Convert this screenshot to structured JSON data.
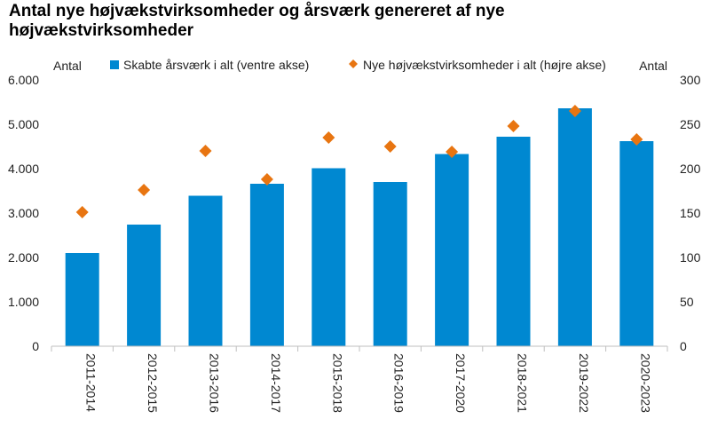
{
  "chart_data": {
    "type": "bar",
    "title": "Antal nye højvækstvirksomheder og årsværk genereret af nye højvækstvirksomheder",
    "categories": [
      "2011-2014",
      "2012-2015",
      "2013-2016",
      "2014-2017",
      "2015-2018",
      "2016-2019",
      "2017-2020",
      "2018-2021",
      "2019-2022",
      "2020-2023"
    ],
    "series": [
      {
        "name": "Skabte årsværk i alt (ventre akse)",
        "type": "bar",
        "axis": "left",
        "color": "#0088d1",
        "values": [
          2100,
          2740,
          3390,
          3660,
          4010,
          3700,
          4330,
          4720,
          5360,
          4620
        ]
      },
      {
        "name": "Nye højvækstvirksomheder i alt (højre akse)",
        "type": "scatter",
        "marker": "diamond",
        "axis": "right",
        "color": "#e87511",
        "values": [
          151,
          176,
          220,
          188,
          235,
          225,
          219,
          248,
          265,
          233
        ]
      }
    ],
    "ylabel": "Antal",
    "y2label": "Antal",
    "ylim": [
      0,
      6000
    ],
    "y2lim": [
      0,
      300
    ],
    "yticks": [
      "0",
      "1.000",
      "2.000",
      "3.000",
      "4.000",
      "5.000",
      "6.000"
    ],
    "y2ticks": [
      "0",
      "50",
      "100",
      "150",
      "200",
      "250",
      "300"
    ],
    "grid": false,
    "legend": "top"
  }
}
